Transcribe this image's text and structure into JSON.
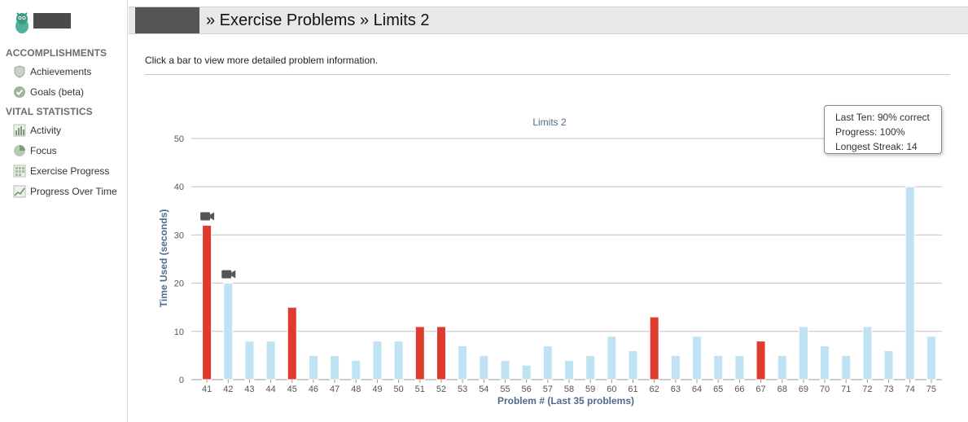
{
  "sidebar": {
    "sections": [
      {
        "heading": "ACCOMPLISHMENTS",
        "items": [
          {
            "label": "Achievements",
            "icon": "shield-icon"
          },
          {
            "label": "Goals (beta)",
            "icon": "checkmark-circle-icon"
          }
        ]
      },
      {
        "heading": "VITAL STATISTICS",
        "items": [
          {
            "label": "Activity",
            "icon": "bar-chart-icon"
          },
          {
            "label": "Focus",
            "icon": "pie-chart-icon"
          },
          {
            "label": "Exercise Progress",
            "icon": "grid-icon"
          },
          {
            "label": "Progress Over Time",
            "icon": "line-chart-icon"
          }
        ]
      }
    ]
  },
  "header": {
    "title": "» Exercise Problems » Limits 2"
  },
  "instructions": "Click a bar to view more detailed problem information.",
  "tooltip": {
    "lines": [
      "Last Ten: 90% correct",
      "Progress: 100%",
      "Longest Streak: 14"
    ]
  },
  "colors": {
    "correct": "#bfe3f3",
    "incorrect": "#e03a2e",
    "axis_label": "#4f6b8c"
  },
  "chart_data": {
    "type": "bar",
    "title": "Limits 2",
    "xlabel": "Problem # (Last 35 problems)",
    "ylabel": "Time Used (seconds)",
    "ylim": [
      0,
      50
    ],
    "yticks": [
      0,
      10,
      20,
      30,
      40,
      50
    ],
    "grid": true,
    "categories": [
      "41",
      "42",
      "43",
      "44",
      "45",
      "46",
      "47",
      "48",
      "49",
      "50",
      "51",
      "52",
      "53",
      "54",
      "55",
      "56",
      "57",
      "58",
      "59",
      "60",
      "61",
      "62",
      "63",
      "64",
      "65",
      "66",
      "67",
      "68",
      "69",
      "70",
      "71",
      "72",
      "73",
      "74",
      "75"
    ],
    "values": [
      32,
      20,
      8,
      8,
      15,
      5,
      5,
      4,
      8,
      8,
      11,
      11,
      7,
      5,
      4,
      3,
      7,
      4,
      5,
      9,
      6,
      13,
      5,
      9,
      5,
      5,
      8,
      5,
      11,
      7,
      5,
      11,
      6,
      40,
      9
    ],
    "correct": [
      false,
      true,
      true,
      true,
      false,
      true,
      true,
      true,
      true,
      true,
      false,
      false,
      true,
      true,
      true,
      true,
      true,
      true,
      true,
      true,
      true,
      false,
      true,
      true,
      true,
      true,
      false,
      true,
      true,
      true,
      true,
      true,
      true,
      true,
      true
    ],
    "video_hint": [
      "41",
      "42"
    ]
  }
}
